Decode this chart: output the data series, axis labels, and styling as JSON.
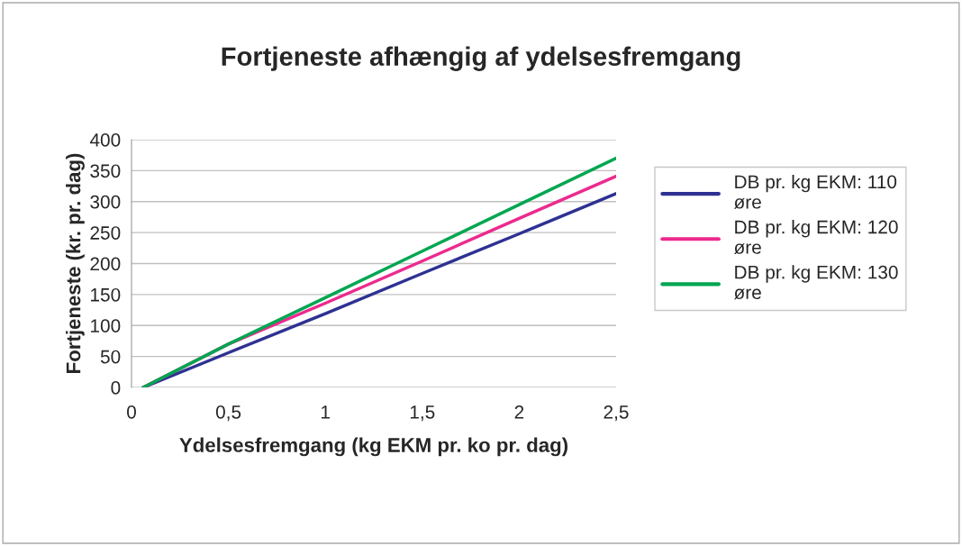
{
  "chart_data": {
    "type": "line",
    "title": "Fortjeneste afhængig af ydelsesfremgang",
    "xlabel": "Ydelsesfremgang (kg EKM pr. ko pr. dag)",
    "ylabel": "Fortjeneste (kr. pr. dag)",
    "x": [
      0.06,
      0.5,
      1,
      1.5,
      2,
      2.5
    ],
    "series": [
      {
        "name": "DB pr. kg EKM: 110 øre",
        "color": "#2e3192",
        "values": [
          0,
          56,
          119,
          184,
          248,
          313
        ]
      },
      {
        "name": "DB pr. kg EKM: 120 øre",
        "color": "#ec2a8e",
        "values": [
          0,
          70,
          136,
          204,
          273,
          341
        ]
      },
      {
        "name": "DB pr. kg EKM: 130 øre",
        "color": "#00a651",
        "values": [
          0,
          70,
          145,
          220,
          295,
          370
        ]
      }
    ],
    "xlim": [
      0,
      2.5
    ],
    "ylim": [
      0,
      400
    ],
    "xticks": [
      0,
      {
        "value": 0.5,
        "label": "0,5"
      },
      1,
      {
        "value": 1.5,
        "label": "1,5"
      },
      2,
      {
        "value": 2.5,
        "label": "2,5"
      }
    ],
    "yticks": [
      0,
      50,
      100,
      150,
      200,
      250,
      300,
      350,
      400
    ],
    "grid": "y",
    "legend": "right",
    "marker": "none",
    "line_style": "solid"
  }
}
